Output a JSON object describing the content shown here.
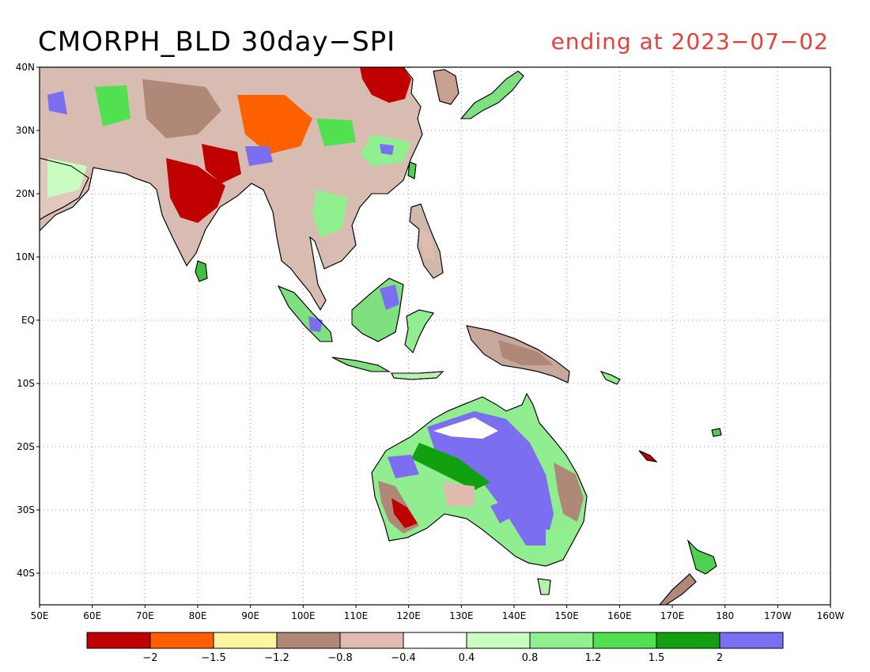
{
  "title": "CMORPH_BLD 30day−SPI",
  "subtitle": "ending at 2023−07−02",
  "colors": {
    "title": "#000000",
    "subtitle": "#e8403a",
    "land_outline": "#000000",
    "grid": "#a0a0a0"
  },
  "axes": {
    "lat_labels": [
      "40N",
      "30N",
      "20N",
      "10N",
      "EQ",
      "10S",
      "20S",
      "30S",
      "40S"
    ],
    "lon_labels": [
      "50E",
      "60E",
      "70E",
      "80E",
      "90E",
      "100E",
      "110E",
      "120E",
      "130E",
      "140E",
      "150E",
      "160E",
      "170E",
      "180",
      "170W",
      "160W"
    ]
  },
  "legend": {
    "colors": [
      "#c00000",
      "#ff6000",
      "#fff5a0",
      "#b08878",
      "#e0bcb0",
      "#ffffff",
      "#c8fcc0",
      "#90f090",
      "#50e050",
      "#10a010",
      "#7c6ef0"
    ],
    "labels": [
      "−2",
      "−1.5",
      "−1.2",
      "−0.8",
      "−0.4",
      "0.4",
      "0.8",
      "1.2",
      "1.5",
      "2"
    ]
  }
}
